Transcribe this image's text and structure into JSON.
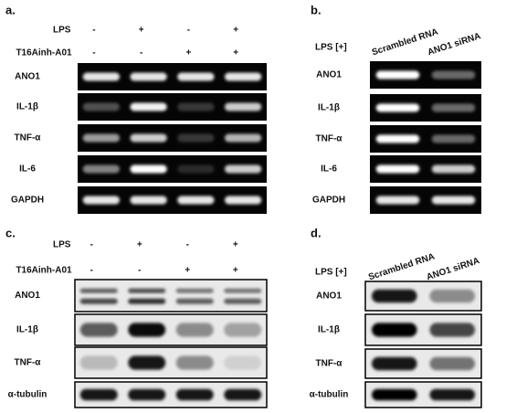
{
  "panels": [
    {
      "label": "a.",
      "conditions": [
        {
          "name": "LPS",
          "signs": [
            "-",
            "+",
            "-",
            "+"
          ]
        },
        {
          "name": "T16Ainh-A01",
          "signs": [
            "-",
            "-",
            "+",
            "+"
          ]
        }
      ],
      "rows": [
        "ANO1",
        "IL-1β",
        "TNF-α",
        "IL-6",
        "GAPDH"
      ]
    },
    {
      "label": "b.",
      "condition": "LPS [+]",
      "columns": [
        "Scrambled RNA",
        "ANO1 siRNA"
      ],
      "rows": [
        "ANO1",
        "IL-1β",
        "TNF-α",
        "IL-6",
        "GAPDH"
      ]
    },
    {
      "label": "c.",
      "conditions": [
        {
          "name": "LPS",
          "signs": [
            "-",
            "+",
            "-",
            "+"
          ]
        },
        {
          "name": "T16Ainh-A01",
          "signs": [
            "-",
            "-",
            "+",
            "+"
          ]
        }
      ],
      "rows": [
        "ANO1",
        "IL-1β",
        "TNF-α",
        "α-tubulin"
      ]
    },
    {
      "label": "d.",
      "condition": "LPS [+]",
      "columns": [
        "Scrambled RNA",
        "ANO1 siRNA"
      ],
      "rows": [
        "ANO1",
        "IL-1β",
        "TNF-α",
        "α-tubulin"
      ]
    }
  ]
}
